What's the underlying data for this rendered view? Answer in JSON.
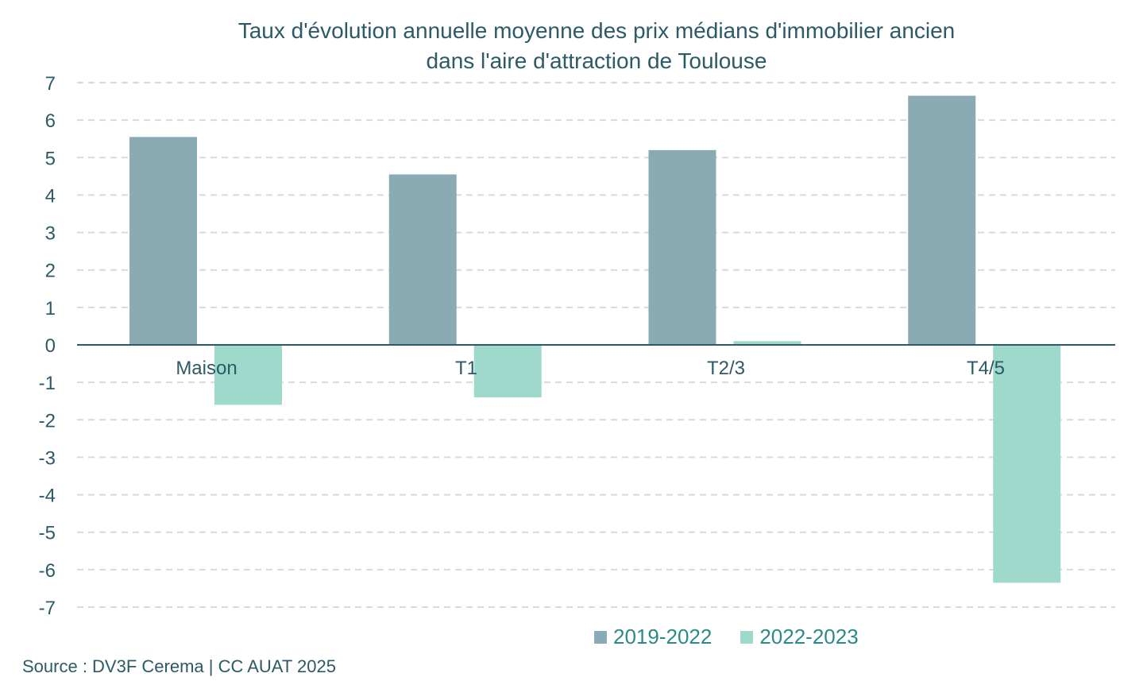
{
  "chart_data": {
    "type": "bar",
    "title_lines": [
      "Taux d'évolution annuelle moyenne des prix médians d'immobilier ancien",
      "dans l'aire d'attraction de Toulouse"
    ],
    "categories": [
      "Maison",
      "T1",
      "T2/3",
      "T4/5"
    ],
    "series": [
      {
        "name": "2019-2022",
        "values": [
          5.55,
          4.55,
          5.2,
          6.65
        ],
        "color": "#8aabb4"
      },
      {
        "name": "2022-2023",
        "values": [
          -1.6,
          -1.4,
          0.1,
          -6.35
        ],
        "color": "#9ed9cc"
      }
    ],
    "ylim": [
      -7,
      7
    ],
    "yticks": [
      7,
      6,
      5,
      4,
      3,
      2,
      1,
      0,
      -1,
      -2,
      -3,
      -4,
      -5,
      -6,
      -7
    ],
    "grid": true,
    "legend_position": "bottom-right"
  },
  "source": "Source : DV3F Cerema | CC AUAT 2025"
}
